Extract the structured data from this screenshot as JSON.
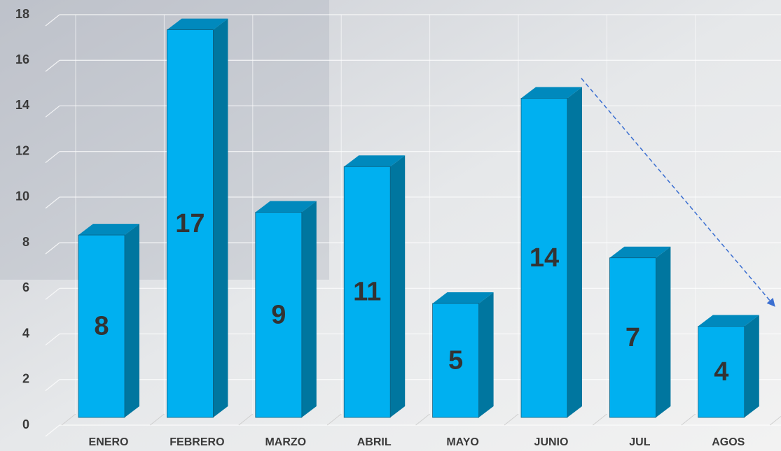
{
  "chart_data": {
    "type": "bar3d",
    "categories": [
      "ENERO",
      "FEBRERO",
      "MARZO",
      "ABRIL",
      "MAYO",
      "JUNIO",
      "JUL",
      "AGOS"
    ],
    "values": [
      8,
      17,
      9,
      11,
      5,
      14,
      7,
      4
    ],
    "color": "#00b0f0",
    "side_color": "#00769f",
    "top_color": "#0089bd",
    "ylim": [
      0,
      18
    ],
    "yticks": [
      0,
      2,
      4,
      6,
      8,
      10,
      12,
      14,
      16,
      18
    ],
    "grid": true
  }
}
